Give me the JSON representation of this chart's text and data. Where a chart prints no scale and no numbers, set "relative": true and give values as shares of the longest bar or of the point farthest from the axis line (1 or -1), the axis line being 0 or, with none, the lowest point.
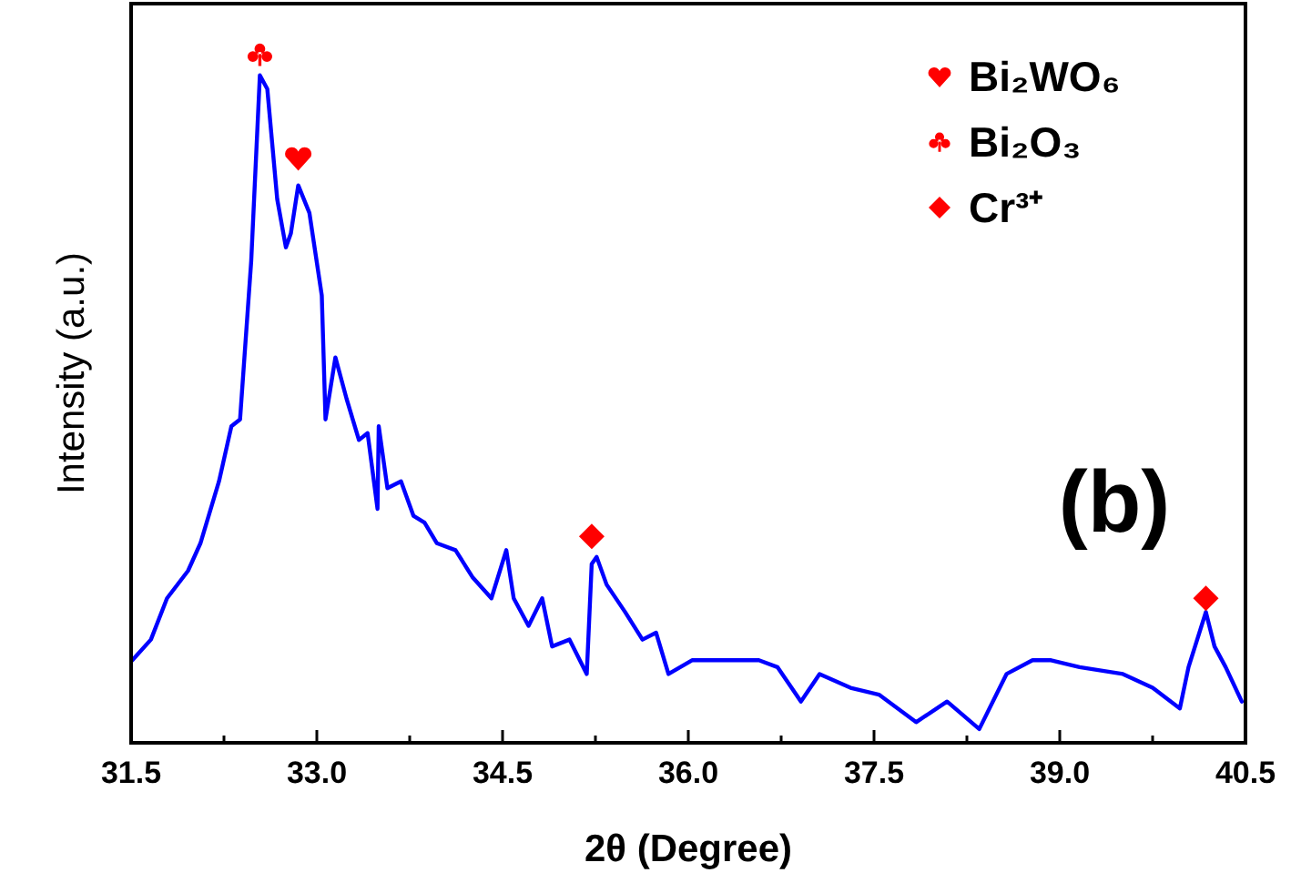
{
  "chart_data": {
    "type": "line",
    "relative": true,
    "xlabel": "2θ (Degree)",
    "ylabel": "Intensity (a.u.)",
    "xlim": [
      31.5,
      40.5
    ],
    "xticks": [
      31.5,
      {
        "value": 32.25,
        "label": null
      },
      {
        "value": 33,
        "label": "33.0"
      },
      {
        "value": 33.75,
        "label": null
      },
      34.5,
      {
        "value": 35.25,
        "label": null
      },
      {
        "value": 36,
        "label": "36.0"
      },
      {
        "value": 36.75,
        "label": null
      },
      37.5,
      {
        "value": 38.25,
        "label": null
      },
      {
        "value": 39,
        "label": "39.0"
      },
      {
        "value": 39.75,
        "label": null
      },
      40.5
    ],
    "legend": "top right",
    "annotations": [
      "(b)"
    ],
    "series": [
      {
        "color": "#0000ff",
        "x": [
          31.51,
          31.66,
          31.79,
          31.96,
          32.06,
          32.21,
          32.31,
          32.38,
          32.47,
          32.54,
          32.6,
          32.68,
          32.75,
          32.79,
          32.85,
          32.94,
          33.04,
          33.07,
          33.15,
          33.24,
          33.34,
          33.41,
          33.49,
          33.5,
          33.57,
          33.68,
          33.78,
          33.87,
          33.97,
          34.12,
          34.26,
          34.41,
          34.53,
          34.59,
          34.71,
          34.82,
          34.9,
          35.04,
          35.18,
          35.22,
          35.26,
          35.34,
          35.49,
          35.63,
          35.74,
          35.84,
          36.03,
          36.32,
          36.57,
          36.72,
          36.91,
          37.06,
          37.31,
          37.54,
          37.84,
          38.09,
          38.35,
          38.57,
          38.78,
          38.93,
          39.16,
          39.51,
          39.75,
          39.97,
          40.04,
          40.18,
          40.25,
          40.34,
          40.47
        ],
        "values": [
          0.12,
          0.15,
          0.21,
          0.25,
          0.29,
          0.38,
          0.46,
          0.47,
          0.7,
          0.97,
          0.95,
          0.79,
          0.72,
          0.74,
          0.81,
          0.77,
          0.65,
          0.47,
          0.56,
          0.5,
          0.44,
          0.45,
          0.34,
          0.46,
          0.37,
          0.38,
          0.33,
          0.32,
          0.29,
          0.28,
          0.24,
          0.21,
          0.28,
          0.21,
          0.17,
          0.21,
          0.14,
          0.15,
          0.1,
          0.26,
          0.27,
          0.23,
          0.19,
          0.15,
          0.16,
          0.1,
          0.12,
          0.12,
          0.12,
          0.11,
          0.06,
          0.1,
          0.08,
          0.07,
          0.03,
          0.06,
          0.02,
          0.1,
          0.12,
          0.12,
          0.11,
          0.1,
          0.08,
          0.05,
          0.11,
          0.19,
          0.14,
          0.11,
          0.06
        ]
      },
      {
        "type": "scatter",
        "name": "Bi₂WO₆",
        "color": "#ff0000",
        "x": [
          32.85
        ],
        "values": [
          0.85
        ]
      },
      {
        "type": "scatter",
        "name": "Bi₂O₃",
        "color": "#ff0000",
        "x": [
          32.54
        ],
        "values": [
          1
        ]
      },
      {
        "type": "scatter",
        "name": "Cr³⁺",
        "color": "#ff0000",
        "marker": "diamond",
        "x": [
          35.22,
          40.18
        ],
        "values": [
          0.3,
          0.21
        ]
      }
    ]
  }
}
